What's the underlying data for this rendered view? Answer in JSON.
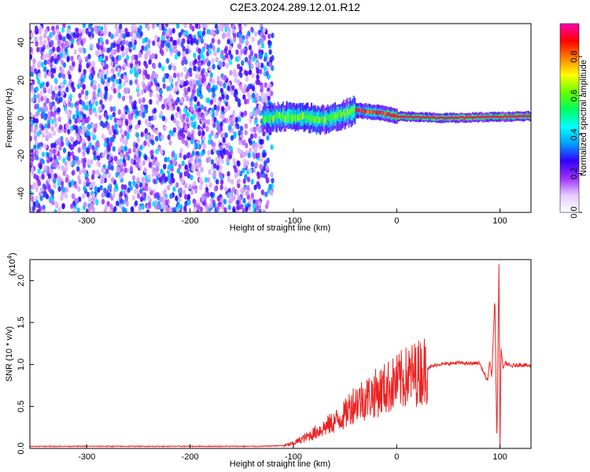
{
  "title": "C2E3.2024.289.12.01.R12",
  "chart_data": [
    {
      "type": "heatmap",
      "title": "",
      "xlabel": "Height of straight line (km)",
      "ylabel": "Frequency (Hz)",
      "xlim": [
        -355,
        130
      ],
      "ylim": [
        -50,
        50
      ],
      "xticks": [
        -300,
        -200,
        -100,
        0,
        100
      ],
      "yticks": [
        -40,
        -20,
        0,
        20,
        40
      ],
      "colorbar": {
        "label": "Normalized spectral amplitude",
        "range": [
          0.0,
          0.97
        ],
        "ticks": [
          "0.0",
          "0.2",
          "0.4",
          "0.6",
          "0.8"
        ],
        "tick_values": [
          0.0,
          0.2,
          0.4,
          0.6,
          0.8
        ],
        "colors": [
          "#ffffff",
          "#e6ccff",
          "#9b30ff",
          "#3300ff",
          "#00a0ff",
          "#00ffff",
          "#00ff60",
          "#66ff00",
          "#ffff00",
          "#ff8000",
          "#ff0000",
          "#ff00b0"
        ]
      },
      "regions": [
        {
          "name": "noise",
          "x_range": [
            -355,
            -120
          ],
          "freq_range": [
            -50,
            50
          ],
          "amplitude": 0.12
        },
        {
          "name": "signal",
          "x_range": [
            -130,
            130
          ],
          "center_freq": [
            [
              -130,
              0
            ],
            [
              -100,
              1
            ],
            [
              -70,
              -1
            ],
            [
              -40,
              4
            ],
            [
              -20,
              3
            ],
            [
              0,
              1
            ],
            [
              40,
              0
            ],
            [
              130,
              1
            ]
          ]
        }
      ]
    },
    {
      "type": "line",
      "title": "",
      "xlabel": "Height of straight line (km)",
      "ylabel": "SNR (10 * v/v)",
      "y_scale_label": "(x10",
      "y_scale_exp": "4",
      "y_scale_close": ")",
      "xlim": [
        -355,
        130
      ],
      "ylim": [
        0,
        2.25
      ],
      "xticks": [
        -300,
        -200,
        -100,
        0,
        100
      ],
      "yticks": [
        "0.0",
        "0.5",
        "1.0",
        "1.5",
        "2.0"
      ],
      "ytick_values": [
        0.0,
        0.5,
        1.0,
        1.5,
        2.0
      ],
      "color": "#ee2222",
      "series": [
        {
          "values_note_free": true,
          "x": [
            -355,
            -300,
            -200,
            -130,
            -110,
            -100,
            -90,
            -80,
            -70,
            -60,
            -50,
            -45,
            -40,
            -30,
            -20,
            -10,
            0,
            10,
            20,
            30,
            40,
            50,
            60,
            70,
            80,
            88,
            90,
            92,
            95,
            97,
            99,
            100,
            101,
            103,
            105,
            110,
            120,
            130
          ],
          "y": [
            0.02,
            0.02,
            0.02,
            0.02,
            0.03,
            0.06,
            0.12,
            0.18,
            0.25,
            0.32,
            0.4,
            0.5,
            0.55,
            0.6,
            0.66,
            0.72,
            0.78,
            0.85,
            0.9,
            0.96,
            1.0,
            1.01,
            1.02,
            1.01,
            1.02,
            0.8,
            1.05,
            0.85,
            1.8,
            0.05,
            2.25,
            0.02,
            1.2,
            0.95,
            1.02,
            0.98,
            1.0,
            0.98
          ]
        }
      ]
    }
  ]
}
